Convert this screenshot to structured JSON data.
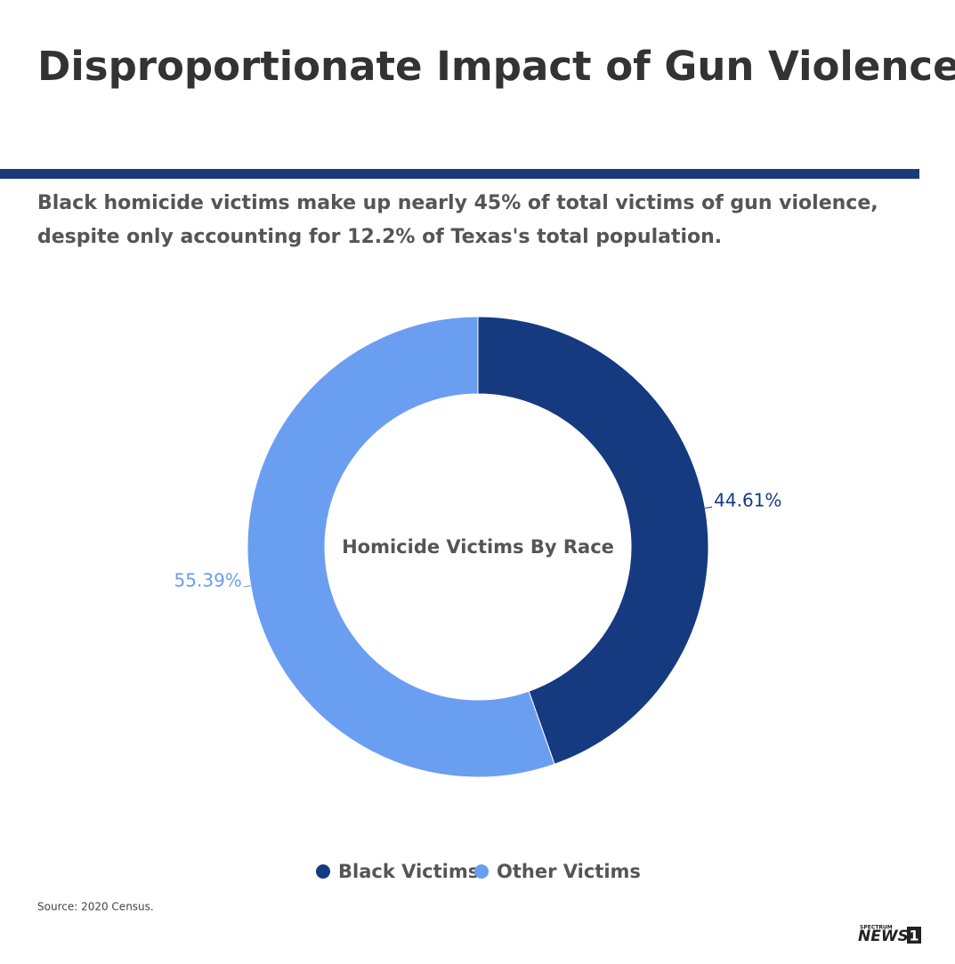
{
  "chart_data": {
    "type": "pie",
    "title": "Disproportionate Impact of Gun Violence",
    "subtitle": [
      "Black homicide victims make up nearly 45% of total victims of gun violence,",
      "despite only accounting for 12.2% of Texas's total population."
    ],
    "center_label": "Homicide Victims By Race",
    "categories": [
      "Black Victims",
      "Other Victims"
    ],
    "values": [
      44.61,
      55.39
    ],
    "value_labels": [
      "44.61%",
      "55.39%"
    ],
    "colors": [
      "#163a80",
      "#6a9ef0"
    ],
    "legend": "bottom",
    "source": "Source: 2020 Census.",
    "logo": [
      "SPECTRUM",
      "NEWS",
      "1"
    ]
  }
}
